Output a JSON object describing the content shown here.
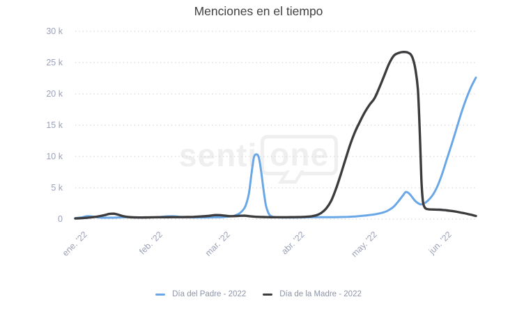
{
  "title": "Menciones en el tiempo",
  "watermark": {
    "part1": "senti",
    "part2": "one"
  },
  "colors": {
    "series_blue": "#6aa7e6",
    "series_dark": "#3c3c3e",
    "grid": "#d3d3d3",
    "axis_text": "#9ba1b7",
    "legend_text": "#8d94a8",
    "title_text": "#404040",
    "watermark": "#efefef"
  },
  "chart_data": {
    "type": "line",
    "title": "Menciones en el tiempo",
    "x_unit": "days since Jan 1, 2022",
    "xlim": [
      -3,
      163
    ],
    "ylim": [
      0,
      30000
    ],
    "grid": "dotted horizontal only",
    "legend_position": "bottom",
    "x_tick_days": [
      0,
      31,
      59,
      90,
      120,
      151
    ],
    "x_tick_labels": [
      "ene. '22",
      "feb. '22",
      "mar. '22",
      "abr. '22",
      "may. '22",
      "jun. '22"
    ],
    "y_tick_values": [
      0,
      5000,
      10000,
      15000,
      20000,
      25000,
      30000
    ],
    "y_tick_labels": [
      "0",
      "5 k",
      "10 k",
      "15 k",
      "20 k",
      "25 k",
      "30 k"
    ],
    "series": [
      {
        "name": "Día del Padre - 2022",
        "color": "#6aa7e6",
        "peaks_note": "peak ~10.35k mid-March, bump ~4.35k mid-May, rises to ~22.6k at right edge",
        "points": [
          [
            -3,
            150
          ],
          [
            0,
            300
          ],
          [
            2,
            480
          ],
          [
            4,
            420
          ],
          [
            7,
            260
          ],
          [
            10,
            220
          ],
          [
            13,
            220
          ],
          [
            16,
            280
          ],
          [
            19,
            300
          ],
          [
            22,
            260
          ],
          [
            25,
            250
          ],
          [
            28,
            280
          ],
          [
            31,
            300
          ],
          [
            34,
            420
          ],
          [
            37,
            460
          ],
          [
            40,
            380
          ],
          [
            43,
            300
          ],
          [
            46,
            270
          ],
          [
            49,
            260
          ],
          [
            52,
            270
          ],
          [
            55,
            290
          ],
          [
            58,
            320
          ],
          [
            61,
            420
          ],
          [
            63,
            560
          ],
          [
            65,
            900
          ],
          [
            67,
            1700
          ],
          [
            68,
            2600
          ],
          [
            69,
            4200
          ],
          [
            70,
            7200
          ],
          [
            71,
            9800
          ],
          [
            72,
            10350
          ],
          [
            73,
            9900
          ],
          [
            74,
            7700
          ],
          [
            75,
            4700
          ],
          [
            76,
            2200
          ],
          [
            77,
            1000
          ],
          [
            78,
            500
          ],
          [
            80,
            300
          ],
          [
            83,
            250
          ],
          [
            86,
            250
          ],
          [
            89,
            260
          ],
          [
            92,
            280
          ],
          [
            95,
            300
          ],
          [
            98,
            300
          ],
          [
            101,
            300
          ],
          [
            104,
            310
          ],
          [
            107,
            330
          ],
          [
            110,
            360
          ],
          [
            113,
            420
          ],
          [
            116,
            520
          ],
          [
            119,
            650
          ],
          [
            122,
            820
          ],
          [
            125,
            1100
          ],
          [
            127,
            1450
          ],
          [
            129,
            2000
          ],
          [
            131,
            2900
          ],
          [
            133,
            3900
          ],
          [
            134,
            4350
          ],
          [
            135,
            4200
          ],
          [
            136,
            3800
          ],
          [
            138,
            2850
          ],
          [
            140,
            2350
          ],
          [
            141,
            2400
          ],
          [
            143,
            2900
          ],
          [
            145,
            3800
          ],
          [
            147,
            5200
          ],
          [
            149,
            7200
          ],
          [
            151,
            9600
          ],
          [
            153,
            12000
          ],
          [
            155,
            14500
          ],
          [
            157,
            17000
          ],
          [
            159,
            19200
          ],
          [
            161,
            21100
          ],
          [
            163,
            22600
          ]
        ]
      },
      {
        "name": "Día de la Madre - 2022",
        "color": "#3c3c3e",
        "peaks_note": "plateau peak ~26.7k early-to-mid May, sharp drop to ~1.5k, fades to ~0.5k",
        "points": [
          [
            -3,
            100
          ],
          [
            0,
            160
          ],
          [
            3,
            260
          ],
          [
            6,
            400
          ],
          [
            9,
            620
          ],
          [
            11,
            820
          ],
          [
            13,
            870
          ],
          [
            15,
            680
          ],
          [
            17,
            450
          ],
          [
            19,
            330
          ],
          [
            22,
            270
          ],
          [
            25,
            260
          ],
          [
            28,
            280
          ],
          [
            31,
            300
          ],
          [
            34,
            300
          ],
          [
            37,
            310
          ],
          [
            40,
            310
          ],
          [
            43,
            330
          ],
          [
            46,
            360
          ],
          [
            49,
            420
          ],
          [
            52,
            500
          ],
          [
            55,
            640
          ],
          [
            57,
            630
          ],
          [
            59,
            540
          ],
          [
            61,
            470
          ],
          [
            63,
            480
          ],
          [
            65,
            520
          ],
          [
            67,
            540
          ],
          [
            69,
            470
          ],
          [
            71,
            400
          ],
          [
            73,
            360
          ],
          [
            75,
            330
          ],
          [
            77,
            310
          ],
          [
            79,
            300
          ],
          [
            81,
            300
          ],
          [
            83,
            300
          ],
          [
            85,
            300
          ],
          [
            87,
            310
          ],
          [
            89,
            320
          ],
          [
            91,
            340
          ],
          [
            93,
            380
          ],
          [
            95,
            460
          ],
          [
            97,
            620
          ],
          [
            99,
            1000
          ],
          [
            101,
            1700
          ],
          [
            103,
            2900
          ],
          [
            105,
            4800
          ],
          [
            107,
            7100
          ],
          [
            109,
            9600
          ],
          [
            111,
            12000
          ],
          [
            113,
            14000
          ],
          [
            115,
            15600
          ],
          [
            117,
            17100
          ],
          [
            119,
            18300
          ],
          [
            121,
            19300
          ],
          [
            123,
            21000
          ],
          [
            125,
            22900
          ],
          [
            127,
            24800
          ],
          [
            129,
            26100
          ],
          [
            131,
            26550
          ],
          [
            133,
            26700
          ],
          [
            134.5,
            26650
          ],
          [
            136,
            26300
          ],
          [
            137,
            25500
          ],
          [
            138,
            23800
          ],
          [
            139,
            20500
          ],
          [
            139.8,
            13500
          ],
          [
            140.4,
            6500
          ],
          [
            141,
            3000
          ],
          [
            141.6,
            2000
          ],
          [
            142.4,
            1650
          ],
          [
            144,
            1550
          ],
          [
            146,
            1520
          ],
          [
            148,
            1500
          ],
          [
            150,
            1430
          ],
          [
            152,
            1350
          ],
          [
            154,
            1250
          ],
          [
            156,
            1100
          ],
          [
            158,
            950
          ],
          [
            160,
            780
          ],
          [
            161.5,
            650
          ],
          [
            163,
            500
          ]
        ]
      }
    ]
  }
}
